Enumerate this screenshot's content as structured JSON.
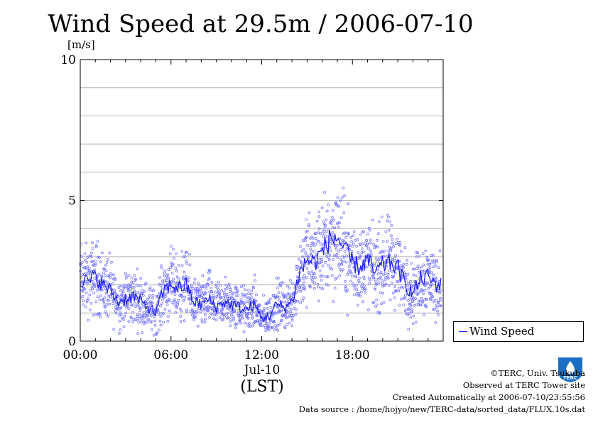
{
  "chart_data": {
    "type": "line",
    "title": "Wind Speed at 29.5m / 2006-07-10",
    "ylabel": "[m/s]",
    "xlabel": "(LST)",
    "date_label": "Jul-10",
    "ylim": [
      0,
      10
    ],
    "xlim_hours": [
      0,
      24
    ],
    "yticks": [
      "0",
      "5",
      "10"
    ],
    "xticks": [
      {
        "hour": 0,
        "label": "00:00"
      },
      {
        "hour": 6,
        "label": "06:00"
      },
      {
        "hour": 12,
        "label": "12:00"
      },
      {
        "hour": 18,
        "label": "18:00"
      }
    ],
    "grid": true,
    "legend_position": "lower-right-outside",
    "series": [
      {
        "name": "Wind Speed",
        "color": "#2222ee",
        "scatter_color": "#7777ff",
        "x_hours": [
          0.0,
          0.5,
          1.0,
          1.5,
          2.0,
          2.5,
          3.0,
          3.5,
          4.0,
          4.5,
          5.0,
          5.5,
          6.0,
          6.5,
          7.0,
          7.5,
          8.0,
          8.5,
          9.0,
          9.5,
          10.0,
          10.5,
          11.0,
          11.5,
          12.0,
          12.5,
          13.0,
          13.5,
          14.0,
          14.5,
          15.0,
          15.5,
          16.0,
          16.5,
          17.0,
          17.5,
          18.0,
          18.5,
          19.0,
          19.5,
          20.0,
          20.5,
          21.0,
          21.5,
          22.0,
          22.5,
          23.0,
          23.5
        ],
        "values": [
          2.2,
          2.1,
          2.3,
          2.0,
          1.8,
          1.4,
          1.5,
          1.6,
          1.4,
          1.2,
          1.0,
          1.8,
          2.0,
          1.9,
          2.0,
          1.4,
          1.3,
          1.5,
          1.2,
          1.4,
          1.3,
          1.2,
          1.1,
          1.3,
          0.8,
          0.9,
          1.3,
          1.2,
          1.4,
          2.4,
          2.9,
          2.8,
          3.2,
          3.6,
          3.7,
          3.2,
          2.8,
          2.6,
          2.9,
          2.4,
          2.7,
          2.8,
          2.6,
          2.0,
          1.7,
          2.2,
          2.3,
          2.0
        ]
      }
    ]
  },
  "credits": {
    "copyright": "©TERC, Univ. Tsukuba",
    "site": "Observed at TERC Tower site",
    "created": "Created Automatically at 2006-07-10/23:55:56",
    "source": "Data source : /home/hojyo/new/TERC-data/sorted_data/FLUX.10s.dat"
  },
  "logo": {
    "icon": "terc-logo-icon",
    "text": "TERC",
    "color": "#1a6fc4"
  }
}
